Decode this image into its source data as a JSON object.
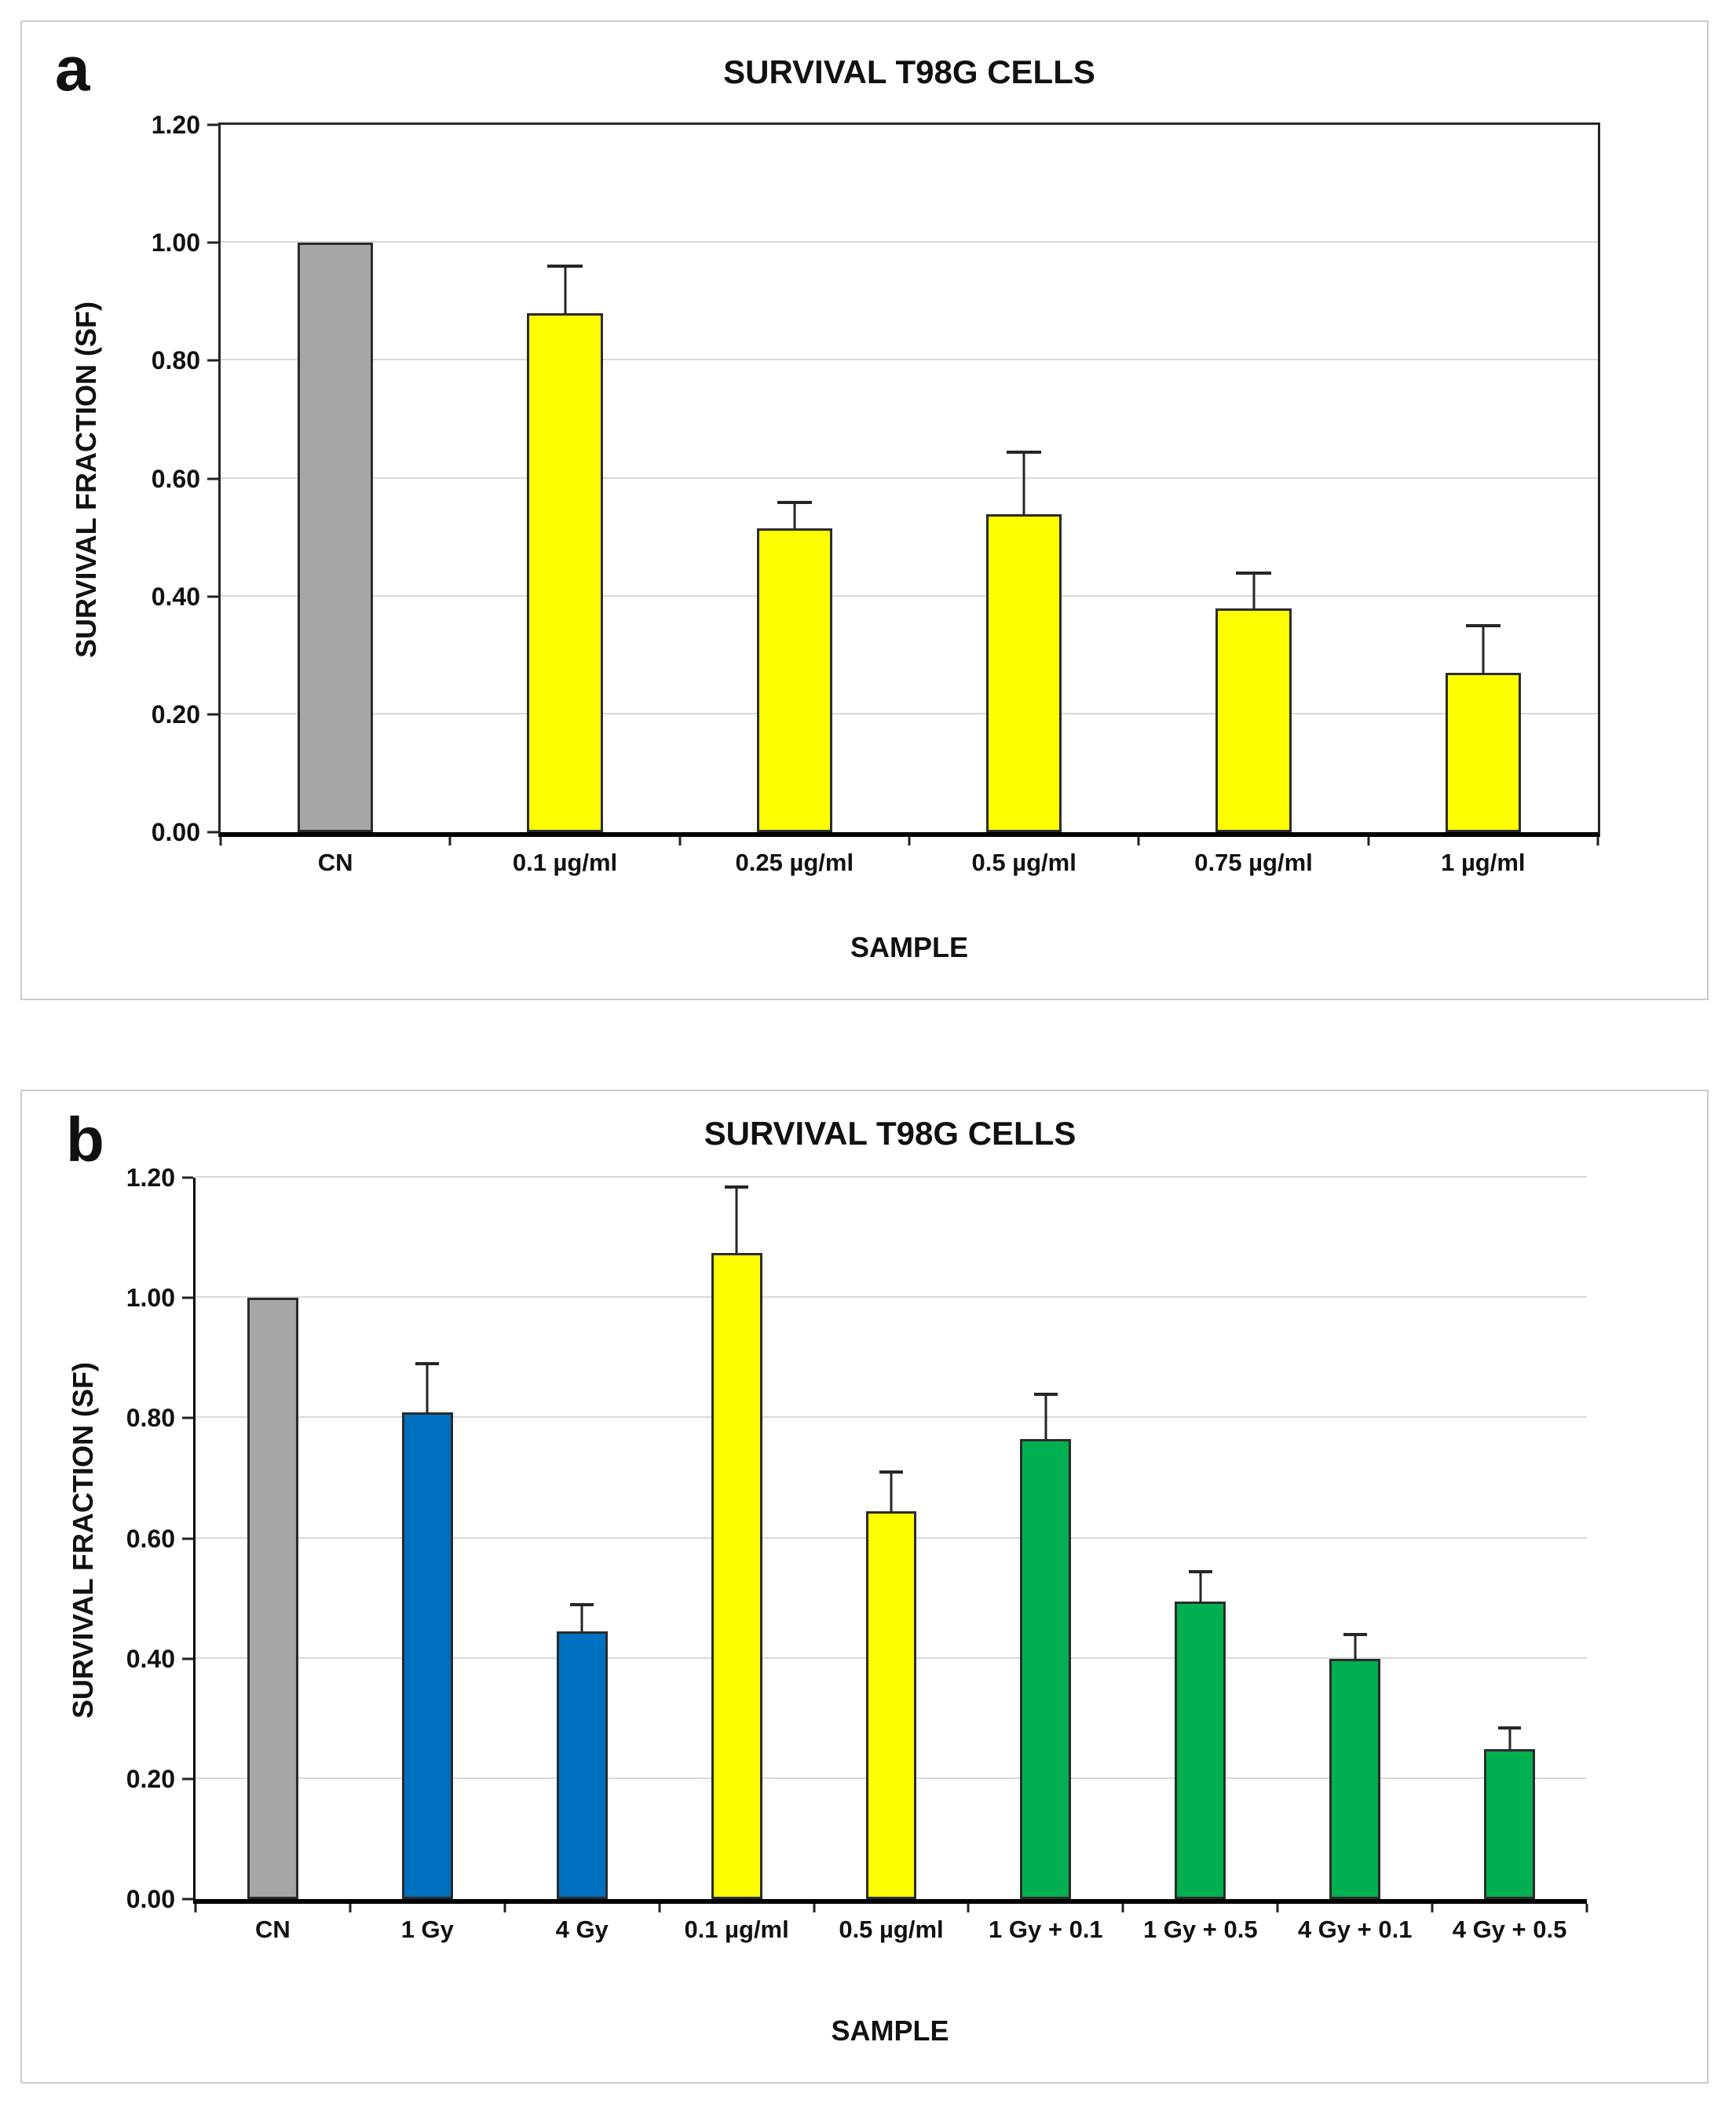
{
  "figure": {
    "panel_a_letter": "a",
    "panel_b_letter": "b"
  },
  "colors": {
    "control_gray": "#A6A6A6",
    "drug_yellow": "#FFFF00",
    "radiation_blue": "#0070C0",
    "combo_green": "#00B050",
    "bar_border": "#2B2B2B",
    "gridline": "#D9D9D9",
    "axis": "#000000",
    "error_bar": "#262626",
    "panel_border": "#CBCBCB"
  },
  "chart_data": [
    {
      "type": "bar",
      "panel": "a",
      "title": "SURVIVAL T98G CELLS",
      "xlabel": "SAMPLE",
      "ylabel": "SURVIVAL FRACTION (SF)",
      "ylim": [
        0,
        1.2
      ],
      "grid": true,
      "legend": "none",
      "plot_border": "full",
      "ytick_values": [
        0,
        0.2,
        0.4,
        0.6,
        0.8,
        1.0,
        1.2
      ],
      "ytick_labels": [
        "0.00",
        "0.20",
        "0.40",
        "0.60",
        "0.80",
        "1.00",
        "1.20"
      ],
      "categories": [
        "CN",
        "0.1 µg/ml",
        "0.25 µg/ml",
        "0.5 µg/ml",
        "0.75 µg/ml",
        "1 µg/ml"
      ],
      "values": [
        1.0,
        0.88,
        0.515,
        0.54,
        0.38,
        0.27
      ],
      "errors_plus": [
        0,
        0.08,
        0.045,
        0.105,
        0.06,
        0.08
      ],
      "bar_colors": [
        "#A6A6A6",
        "#FFFF00",
        "#FFFF00",
        "#FFFF00",
        "#FFFF00",
        "#FFFF00"
      ]
    },
    {
      "type": "bar",
      "panel": "b",
      "title": "SURVIVAL T98G CELLS",
      "xlabel": "SAMPLE",
      "ylabel": "SURVIVAL FRACTION (SF)",
      "ylim": [
        0,
        1.2
      ],
      "grid": true,
      "legend": "none",
      "plot_border": "axes",
      "ytick_values": [
        0,
        0.2,
        0.4,
        0.6,
        0.8,
        1.0,
        1.2
      ],
      "ytick_labels": [
        "0.00",
        "0.20",
        "0.40",
        "0.60",
        "0.80",
        "1.00",
        "1.20"
      ],
      "categories": [
        "CN",
        "1 Gy",
        "4 Gy",
        "0.1 µg/ml",
        "0.5 µg/ml",
        "1 Gy + 0.1",
        "1 Gy + 0.5",
        "4 Gy + 0.1",
        "4 Gy + 0.5"
      ],
      "values": [
        1.0,
        0.81,
        0.445,
        1.075,
        0.645,
        0.765,
        0.495,
        0.4,
        0.25
      ],
      "errors_plus": [
        0,
        0.08,
        0.045,
        0.11,
        0.065,
        0.075,
        0.05,
        0.04,
        0.035
      ],
      "bar_colors": [
        "#A6A6A6",
        "#0070C0",
        "#0070C0",
        "#FFFF00",
        "#FFFF00",
        "#00B050",
        "#00B050",
        "#00B050",
        "#00B050"
      ]
    }
  ]
}
